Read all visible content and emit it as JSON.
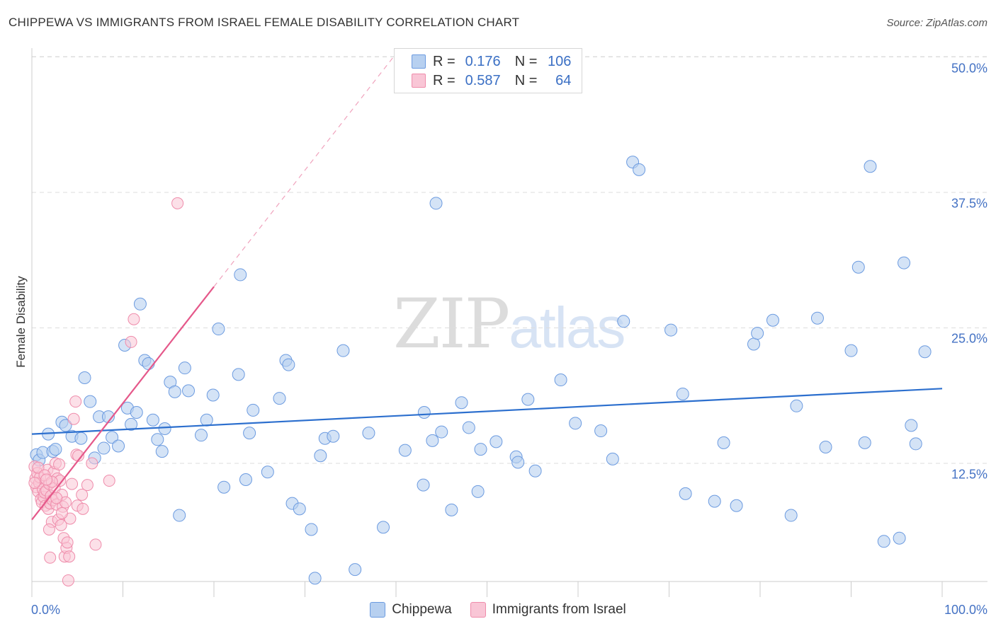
{
  "title": "CHIPPEWA VS IMMIGRANTS FROM ISRAEL FEMALE DISABILITY CORRELATION CHART",
  "source": "Source: ZipAtlas.com",
  "watermark": {
    "part1": "ZIP",
    "part2": "atlas"
  },
  "colors": {
    "chippewa_fill": "#b7d0f0",
    "chippewa_stroke": "#6c9be0",
    "chippewa_line": "#2c6fce",
    "israel_fill": "#f9c6d6",
    "israel_stroke": "#ef8cab",
    "israel_line": "#e5588a",
    "grid": "#dddddd",
    "axis_text": "#4472c4"
  },
  "legend_top": {
    "rows": [
      {
        "r_label": "R =",
        "r_value": "0.176",
        "n_label": "N =",
        "n_value": "106"
      },
      {
        "r_label": "R =",
        "r_value": "0.587",
        "n_label": "N =",
        "n_value": "64"
      }
    ]
  },
  "legend_bottom": {
    "items": [
      "Chippewa",
      "Immigrants from Israel"
    ]
  },
  "chart_data": {
    "type": "scatter",
    "title": "CHIPPEWA VS IMMIGRANTS FROM ISRAEL FEMALE DISABILITY CORRELATION CHART",
    "xlabel": "",
    "ylabel": "Female Disability",
    "xlim": [
      0,
      100
    ],
    "ylim": [
      0,
      52
    ],
    "x_tick_labels": [
      "0.0%",
      "100.0%"
    ],
    "y_ticks": [
      12.5,
      25.0,
      37.5,
      50.0
    ],
    "y_tick_labels": [
      "12.5%",
      "25.0%",
      "37.5%",
      "50.0%"
    ],
    "grid": true,
    "legend_position": "top-center",
    "series": [
      {
        "name": "Chippewa",
        "R": 0.176,
        "N": 106,
        "trend": {
          "x": [
            0,
            100
          ],
          "y": [
            15.2,
            19.4
          ]
        },
        "points": [
          [
            0.5,
            13.3
          ],
          [
            0.8,
            12.8
          ],
          [
            1.2,
            13.5
          ],
          [
            1.8,
            15.2
          ],
          [
            2.3,
            13.6
          ],
          [
            2.6,
            13.8
          ],
          [
            3.3,
            16.3
          ],
          [
            3.7,
            16.0
          ],
          [
            4.4,
            15.0
          ],
          [
            5.4,
            14.8
          ],
          [
            5.8,
            20.4
          ],
          [
            6.4,
            18.2
          ],
          [
            6.9,
            13.0
          ],
          [
            7.4,
            16.8
          ],
          [
            7.9,
            13.9
          ],
          [
            8.4,
            16.8
          ],
          [
            8.8,
            14.9
          ],
          [
            9.5,
            14.1
          ],
          [
            10.2,
            23.4
          ],
          [
            10.5,
            17.6
          ],
          [
            10.9,
            16.1
          ],
          [
            11.5,
            17.2
          ],
          [
            11.9,
            27.2
          ],
          [
            12.4,
            22.0
          ],
          [
            12.8,
            21.7
          ],
          [
            13.3,
            16.5
          ],
          [
            13.8,
            14.7
          ],
          [
            14.3,
            13.6
          ],
          [
            14.6,
            15.7
          ],
          [
            15.2,
            20.0
          ],
          [
            15.7,
            19.1
          ],
          [
            16.2,
            7.7
          ],
          [
            16.8,
            21.3
          ],
          [
            17.2,
            19.2
          ],
          [
            18.6,
            15.1
          ],
          [
            19.2,
            16.5
          ],
          [
            19.9,
            18.8
          ],
          [
            20.5,
            24.9
          ],
          [
            21.1,
            10.3
          ],
          [
            22.7,
            20.7
          ],
          [
            22.9,
            29.9
          ],
          [
            23.5,
            11.0
          ],
          [
            23.9,
            15.3
          ],
          [
            24.3,
            17.4
          ],
          [
            25.9,
            11.7
          ],
          [
            27.2,
            18.5
          ],
          [
            27.9,
            22.0
          ],
          [
            28.2,
            21.6
          ],
          [
            28.6,
            8.8
          ],
          [
            29.4,
            8.3
          ],
          [
            30.7,
            6.4
          ],
          [
            31.1,
            1.9
          ],
          [
            31.7,
            13.2
          ],
          [
            32.2,
            14.8
          ],
          [
            33.1,
            15.0
          ],
          [
            34.2,
            22.9
          ],
          [
            35.5,
            2.7
          ],
          [
            37.0,
            15.3
          ],
          [
            38.6,
            6.6
          ],
          [
            41.0,
            13.7
          ],
          [
            43.0,
            10.5
          ],
          [
            43.1,
            17.2
          ],
          [
            44.0,
            14.6
          ],
          [
            44.4,
            36.5
          ],
          [
            45.0,
            15.4
          ],
          [
            46.1,
            8.2
          ],
          [
            47.2,
            18.1
          ],
          [
            48.0,
            15.8
          ],
          [
            49.0,
            9.9
          ],
          [
            49.3,
            13.8
          ],
          [
            51.0,
            14.5
          ],
          [
            53.2,
            13.1
          ],
          [
            53.4,
            12.6
          ],
          [
            54.5,
            18.4
          ],
          [
            55.3,
            11.8
          ],
          [
            58.1,
            20.2
          ],
          [
            59.7,
            16.2
          ],
          [
            62.5,
            15.5
          ],
          [
            63.8,
            12.9
          ],
          [
            65.0,
            25.6
          ],
          [
            66.0,
            40.3
          ],
          [
            66.7,
            39.6
          ],
          [
            70.2,
            24.8
          ],
          [
            71.5,
            18.9
          ],
          [
            71.8,
            9.7
          ],
          [
            75.0,
            9.0
          ],
          [
            76.0,
            14.4
          ],
          [
            77.4,
            8.6
          ],
          [
            79.3,
            23.5
          ],
          [
            79.7,
            24.5
          ],
          [
            81.4,
            25.7
          ],
          [
            83.4,
            7.7
          ],
          [
            84.0,
            17.8
          ],
          [
            86.3,
            25.9
          ],
          [
            87.2,
            14.0
          ],
          [
            90.0,
            22.9
          ],
          [
            90.8,
            30.6
          ],
          [
            91.5,
            14.4
          ],
          [
            92.1,
            39.9
          ],
          [
            93.6,
            5.3
          ],
          [
            95.3,
            5.6
          ],
          [
            95.8,
            31.0
          ],
          [
            96.6,
            16.0
          ],
          [
            97.1,
            14.3
          ],
          [
            98.1,
            22.8
          ]
        ]
      },
      {
        "name": "Immigrants from Israel",
        "R": 0.587,
        "N": 64,
        "trend": {
          "x": [
            0,
            20
          ],
          "y": [
            7.3,
            28.8
          ]
        },
        "trend_dashed": {
          "x": [
            20,
            40
          ],
          "y": [
            28.8,
            50.3
          ]
        },
        "points": [
          [
            0.3,
            12.2
          ],
          [
            0.4,
            11.1
          ],
          [
            0.5,
            10.3
          ],
          [
            0.6,
            11.6
          ],
          [
            0.7,
            9.9
          ],
          [
            0.8,
            10.7
          ],
          [
            0.9,
            11.2
          ],
          [
            1.0,
            9.2
          ],
          [
            1.1,
            8.9
          ],
          [
            1.2,
            10.1
          ],
          [
            1.3,
            9.4
          ],
          [
            1.4,
            9.8
          ],
          [
            1.5,
            8.6
          ],
          [
            1.6,
            10.0
          ],
          [
            1.7,
            11.9
          ],
          [
            1.8,
            8.3
          ],
          [
            1.9,
            10.6
          ],
          [
            2.0,
            8.8
          ],
          [
            2.1,
            9.5
          ],
          [
            2.2,
            7.1
          ],
          [
            2.3,
            9.1
          ],
          [
            2.4,
            11.7
          ],
          [
            2.5,
            10.2
          ],
          [
            2.6,
            12.5
          ],
          [
            2.7,
            8.7
          ],
          [
            2.8,
            11.1
          ],
          [
            2.9,
            7.3
          ],
          [
            3.0,
            12.4
          ],
          [
            3.1,
            10.9
          ],
          [
            3.2,
            6.8
          ],
          [
            3.3,
            9.6
          ],
          [
            3.4,
            8.5
          ],
          [
            3.5,
            5.6
          ],
          [
            3.6,
            3.9
          ],
          [
            3.7,
            8.9
          ],
          [
            3.8,
            4.7
          ],
          [
            3.9,
            5.2
          ],
          [
            4.0,
            1.7
          ],
          [
            4.1,
            3.9
          ],
          [
            4.2,
            7.4
          ],
          [
            4.4,
            10.6
          ],
          [
            4.6,
            16.6
          ],
          [
            4.8,
            18.2
          ],
          [
            4.9,
            13.3
          ],
          [
            5.0,
            8.6
          ],
          [
            5.1,
            13.2
          ],
          [
            5.5,
            9.6
          ],
          [
            5.6,
            8.3
          ],
          [
            6.1,
            10.5
          ],
          [
            6.6,
            12.5
          ],
          [
            7.0,
            5.0
          ],
          [
            8.5,
            10.9
          ],
          [
            10.9,
            23.7
          ],
          [
            11.2,
            25.8
          ],
          [
            16.0,
            36.5
          ],
          [
            0.3,
            10.7
          ],
          [
            0.7,
            12.1
          ],
          [
            1.4,
            11.4
          ],
          [
            2.2,
            10.8
          ],
          [
            2.7,
            9.3
          ],
          [
            3.3,
            7.9
          ],
          [
            1.9,
            6.4
          ],
          [
            2.0,
            3.8
          ],
          [
            1.6,
            11.0
          ]
        ]
      }
    ]
  }
}
